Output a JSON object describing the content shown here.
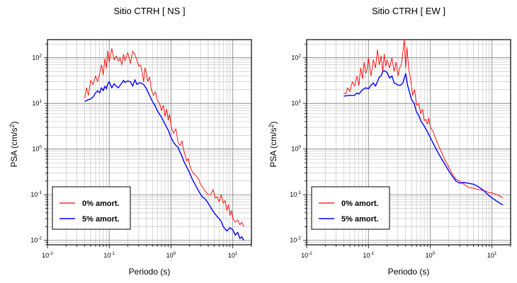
{
  "charts": [
    {
      "title": "Sitio CTRH [ NS ]",
      "xlabel": "Periodo (s)",
      "legend": [
        "0% amort.",
        "5% amort."
      ]
    },
    {
      "title": "Sitio CTRH [ EW ]",
      "xlabel": "Periodo (s)",
      "legend": [
        "0% amort.",
        "5% amort."
      ]
    }
  ],
  "chart_data": [
    {
      "type": "line",
      "title": "Sitio CTRH [ NS ]",
      "xlabel": "Periodo (s)",
      "ylabel": "PSA (cm/s²)",
      "x_scale": "log",
      "y_scale": "log",
      "xlim": [
        0.01,
        20
      ],
      "ylim": [
        0.008,
        250
      ],
      "xticks": [
        0.01,
        0.1,
        1,
        10
      ],
      "yticks": [
        0.01,
        0.1,
        1,
        10,
        100
      ],
      "grid": true,
      "legend_position": "bottom-left",
      "series": [
        {
          "name": "0% amort.",
          "color": "#ff0000",
          "x": [
            0.04,
            0.043,
            0.046,
            0.05,
            0.055,
            0.06,
            0.065,
            0.07,
            0.075,
            0.08,
            0.085,
            0.09,
            0.095,
            0.1,
            0.11,
            0.12,
            0.13,
            0.14,
            0.15,
            0.16,
            0.17,
            0.18,
            0.19,
            0.2,
            0.22,
            0.24,
            0.26,
            0.28,
            0.3,
            0.32,
            0.34,
            0.36,
            0.38,
            0.4,
            0.42,
            0.45,
            0.48,
            0.52,
            0.56,
            0.6,
            0.65,
            0.7,
            0.75,
            0.8,
            0.85,
            0.9,
            0.95,
            1.0,
            1.1,
            1.2,
            1.3,
            1.4,
            1.5,
            1.6,
            1.7,
            1.8,
            1.9,
            2.0,
            2.2,
            2.4,
            2.6,
            2.8,
            3.0,
            3.3,
            3.6,
            4.0,
            4.4,
            4.8,
            5.2,
            5.6,
            6.0,
            6.5,
            7.0,
            7.5,
            8.0,
            8.5,
            9.0,
            9.5,
            10,
            11,
            12,
            13,
            14,
            15
          ],
          "y": [
            13,
            22,
            15,
            32,
            26,
            40,
            30,
            45,
            70,
            42,
            95,
            60,
            140,
            80,
            160,
            90,
            110,
            85,
            100,
            70,
            120,
            85,
            110,
            130,
            75,
            140,
            120,
            90,
            65,
            70,
            50,
            30,
            60,
            45,
            30,
            38,
            20,
            15,
            18,
            12,
            10,
            7,
            9,
            5.2,
            7.5,
            4.3,
            5.8,
            3.2,
            2.2,
            2.8,
            1.4,
            1.2,
            1.5,
            0.95,
            0.72,
            0.55,
            0.62,
            0.45,
            0.32,
            0.28,
            0.25,
            0.22,
            0.17,
            0.14,
            0.12,
            0.1,
            0.1,
            0.13,
            0.085,
            0.09,
            0.07,
            0.1,
            0.065,
            0.075,
            0.045,
            0.06,
            0.035,
            0.045,
            0.03,
            0.025,
            0.028,
            0.022,
            0.025,
            0.02
          ]
        },
        {
          "name": "5% amort.",
          "color": "#0000ff",
          "x": [
            0.04,
            0.045,
            0.05,
            0.055,
            0.06,
            0.065,
            0.07,
            0.075,
            0.08,
            0.085,
            0.09,
            0.095,
            0.1,
            0.11,
            0.12,
            0.13,
            0.14,
            0.15,
            0.16,
            0.17,
            0.18,
            0.2,
            0.22,
            0.24,
            0.26,
            0.28,
            0.3,
            0.33,
            0.36,
            0.4,
            0.45,
            0.5,
            0.55,
            0.6,
            0.65,
            0.7,
            0.8,
            0.9,
            1.0,
            1.1,
            1.2,
            1.3,
            1.4,
            1.5,
            1.6,
            1.8,
            2.0,
            2.2,
            2.5,
            2.8,
            3.2,
            3.6,
            4.0,
            4.5,
            5.0,
            5.5,
            6.0,
            6.5,
            7.0,
            8.0,
            9.0,
            10,
            11,
            12,
            13,
            14,
            15
          ],
          "y": [
            11,
            12,
            12.5,
            14,
            17,
            19,
            17,
            22,
            19,
            24,
            21,
            27,
            30,
            22,
            27,
            24,
            22,
            25,
            28,
            32,
            29,
            31,
            30,
            24,
            33,
            26,
            28,
            28,
            26,
            21,
            15,
            11,
            9,
            7,
            5.8,
            5,
            3.5,
            2.6,
            1.8,
            1.4,
            1.2,
            1.1,
            0.85,
            0.7,
            0.55,
            0.4,
            0.3,
            0.22,
            0.16,
            0.12,
            0.09,
            0.08,
            0.065,
            0.05,
            0.04,
            0.034,
            0.03,
            0.026,
            0.02,
            0.016,
            0.019,
            0.017,
            0.013,
            0.015,
            0.011,
            0.012,
            0.01
          ]
        }
      ]
    },
    {
      "type": "line",
      "title": "Sitio CTRH [ EW ]",
      "xlabel": "Periodo (s)",
      "ylabel": "PSA (cm/s²)",
      "x_scale": "log",
      "y_scale": "log",
      "xlim": [
        0.01,
        20
      ],
      "ylim": [
        0.008,
        250
      ],
      "xticks": [
        0.01,
        0.1,
        1,
        10
      ],
      "yticks": [
        0.01,
        0.1,
        1,
        10,
        100
      ],
      "grid": true,
      "legend_position": "bottom-left",
      "series": [
        {
          "name": "0% amort.",
          "color": "#ff0000",
          "x": [
            0.04,
            0.043,
            0.046,
            0.05,
            0.055,
            0.06,
            0.065,
            0.07,
            0.075,
            0.08,
            0.085,
            0.09,
            0.095,
            0.1,
            0.11,
            0.12,
            0.13,
            0.14,
            0.15,
            0.16,
            0.17,
            0.18,
            0.19,
            0.2,
            0.22,
            0.24,
            0.26,
            0.28,
            0.3,
            0.32,
            0.34,
            0.36,
            0.38,
            0.4,
            0.42,
            0.45,
            0.48,
            0.52,
            0.56,
            0.6,
            0.65,
            0.7,
            0.75,
            0.8,
            0.85,
            0.9,
            0.95,
            1.0,
            1.1,
            1.2,
            1.3,
            1.4,
            1.5,
            1.7,
            2.0,
            2.3,
            2.6,
            3.0,
            3.5,
            4.0,
            4.5,
            5.0,
            6.0,
            7.0,
            8.0,
            9.0,
            10,
            11,
            12,
            13,
            14,
            15
          ],
          "y": [
            17,
            16,
            22,
            18,
            30,
            24,
            40,
            25,
            60,
            35,
            80,
            45,
            55,
            100,
            40,
            90,
            60,
            150,
            70,
            110,
            50,
            120,
            65,
            90,
            60,
            100,
            50,
            80,
            40,
            60,
            70,
            130,
            250,
            60,
            170,
            55,
            35,
            15,
            20,
            9,
            10,
            6,
            7.5,
            4.2,
            4.5,
            3.5,
            4.8,
            3,
            2.5,
            1.8,
            1.4,
            1.1,
            0.9,
            0.6,
            0.4,
            0.28,
            0.22,
            0.2,
            0.17,
            0.15,
            0.14,
            0.14,
            0.13,
            0.125,
            0.12,
            0.11,
            0.11,
            0.105,
            0.1,
            0.095,
            0.09,
            0.085
          ]
        },
        {
          "name": "5% amort.",
          "color": "#0000ff",
          "x": [
            0.04,
            0.05,
            0.06,
            0.065,
            0.07,
            0.08,
            0.09,
            0.1,
            0.11,
            0.12,
            0.13,
            0.14,
            0.15,
            0.16,
            0.17,
            0.18,
            0.2,
            0.22,
            0.24,
            0.26,
            0.28,
            0.3,
            0.33,
            0.36,
            0.4,
            0.43,
            0.46,
            0.5,
            0.55,
            0.6,
            0.65,
            0.7,
            0.8,
            0.9,
            1.0,
            1.2,
            1.4,
            1.6,
            1.8,
            2.0,
            2.3,
            2.6,
            3.0,
            3.5,
            4.0,
            5.0,
            6.0,
            7.0,
            8.0,
            9.0,
            10,
            11,
            12,
            13,
            14,
            15
          ],
          "y": [
            14.5,
            15,
            15,
            17,
            16,
            20,
            22,
            21,
            25,
            28,
            24,
            30,
            38,
            40,
            50,
            52,
            48,
            36,
            40,
            28,
            27,
            25,
            25,
            28,
            45,
            25,
            18,
            12,
            10,
            6.5,
            5.5,
            4.2,
            3.2,
            2.4,
            1.8,
            1.1,
            0.75,
            0.55,
            0.42,
            0.33,
            0.25,
            0.2,
            0.18,
            0.185,
            0.18,
            0.17,
            0.15,
            0.13,
            0.11,
            0.095,
            0.085,
            0.078,
            0.072,
            0.067,
            0.063,
            0.06
          ]
        }
      ]
    }
  ]
}
